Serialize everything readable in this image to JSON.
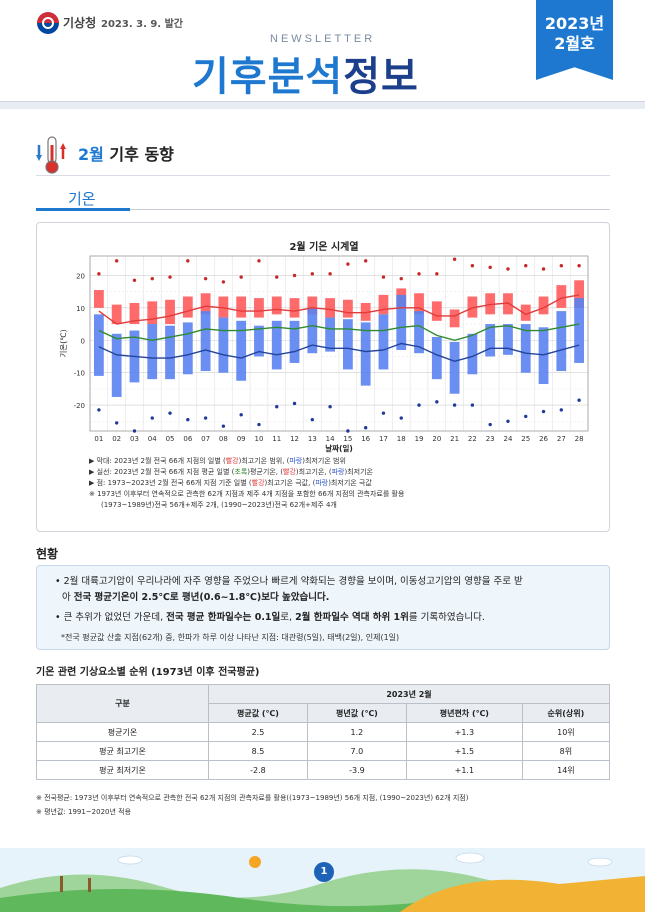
{
  "header": {
    "agency": "기상청",
    "pub_date": "2023. 3. 9. 발간",
    "newsletter": "NEWSLETTER",
    "title_part1": "기후분석",
    "title_part2": "정보",
    "issue_year": "2023년",
    "issue_month": "2월호",
    "colors": {
      "accent": "#1e78d0",
      "dark_blue": "#1c3f8c"
    }
  },
  "section": {
    "icon": "thermometer-icon",
    "title_month": "2월",
    "title_rest": " 기후 동향",
    "tab": "기온"
  },
  "chart_data": {
    "type": "bar",
    "title": "2월 기온 시계열",
    "xlabel": "날짜(일)",
    "ylabel": "기온(℃)",
    "ylim": [
      -28,
      26
    ],
    "yticks": [
      -20,
      -10,
      0,
      10,
      20
    ],
    "grid": true,
    "categories": [
      "01",
      "02",
      "03",
      "04",
      "05",
      "06",
      "07",
      "08",
      "09",
      "10",
      "11",
      "12",
      "13",
      "14",
      "15",
      "16",
      "17",
      "18",
      "19",
      "20",
      "21",
      "22",
      "23",
      "24",
      "25",
      "26",
      "27",
      "28"
    ],
    "series": [
      {
        "kind": "range",
        "color": "#ff5a5a",
        "low": [
          10,
          5,
          5,
          5,
          5,
          7,
          8,
          7,
          7,
          7,
          8,
          7,
          8,
          7,
          7,
          6,
          8,
          10,
          8,
          6,
          4,
          7,
          8,
          8,
          6,
          8,
          10,
          10
        ],
        "high": [
          15.5,
          11,
          11.5,
          12,
          12.5,
          13.5,
          14.5,
          13.5,
          13.5,
          13,
          13.5,
          13,
          13.5,
          13,
          12.5,
          11.5,
          14,
          16,
          14.5,
          12,
          9.5,
          13.5,
          14.5,
          14.5,
          11,
          13.5,
          17,
          18.5
        ]
      },
      {
        "kind": "range",
        "color": "#5a82ef",
        "low": [
          -11,
          -17.5,
          -13,
          -12,
          -12,
          -10.5,
          -9.5,
          -10,
          -12.5,
          -5,
          -9,
          -7,
          -4,
          -3.5,
          -9,
          -14,
          -9,
          -3,
          -4,
          -12,
          -16.5,
          -10.5,
          -5,
          -4.5,
          -10,
          -13.5,
          -9.5,
          -7
        ],
        "high": [
          8,
          2,
          3,
          5,
          4.5,
          5.5,
          9,
          7,
          6,
          4.5,
          6,
          6,
          10,
          7,
          6.5,
          5.5,
          8,
          14,
          9,
          1,
          -0.5,
          2,
          5,
          5,
          5,
          4,
          9,
          13
        ]
      },
      {
        "kind": "line",
        "color": "#e23b3b",
        "values": [
          9,
          5,
          6,
          6.5,
          7.5,
          9,
          10.5,
          10,
          9,
          9,
          9.5,
          9,
          10,
          9.5,
          8.5,
          8.5,
          9.5,
          10,
          10,
          7.5,
          7.5,
          10,
          11,
          11.5,
          8,
          10,
          13,
          14
        ]
      },
      {
        "kind": "line",
        "color": "#2e8b2e",
        "values": [
          3,
          0.5,
          1,
          0,
          1,
          2,
          3.5,
          3,
          3,
          3.5,
          4,
          3.5,
          4.5,
          3.5,
          3.5,
          3,
          3,
          4,
          4.5,
          1.5,
          0,
          1.5,
          4,
          4.5,
          3,
          3,
          4,
          5
        ]
      },
      {
        "kind": "line",
        "color": "#22449b",
        "values": [
          -2,
          -4.5,
          -5,
          -5.5,
          -5.5,
          -4.5,
          -3,
          -4.5,
          -5.5,
          -3.5,
          -4.5,
          -3.5,
          -1.5,
          -2.5,
          -2.5,
          -3.5,
          -3,
          -1,
          -2,
          -4.5,
          -6.5,
          -5,
          -2.5,
          -2.5,
          -4,
          -4.5,
          -3,
          -1.5
        ]
      },
      {
        "kind": "points",
        "color": "#c82828",
        "values": [
          20.5,
          24.5,
          18.5,
          19,
          19.5,
          24.5,
          19,
          18,
          19.5,
          24.5,
          19.5,
          20,
          20.5,
          20.5,
          23.5,
          24.5,
          19.5,
          19,
          20.5,
          20.5,
          25,
          23,
          22.5,
          22,
          23,
          22,
          23,
          23
        ]
      },
      {
        "kind": "points",
        "color": "#1f3a9a",
        "values": [
          -21.5,
          -25.5,
          -28,
          -24,
          -22.5,
          -24.5,
          -24,
          -26.5,
          -23,
          -26,
          -20.5,
          -19.5,
          -24.5,
          -20.5,
          -28,
          -27,
          -22.5,
          -24,
          -20,
          -19,
          -20,
          -20,
          -26,
          -25,
          -23.5,
          -22,
          -21.5,
          -18.5
        ]
      }
    ]
  },
  "legend": {
    "line1_pre": "▶ 막대: 2023년 2월 전국 66개 지점의 일별 (",
    "line1_red": "빨강",
    "line1_mid": ")최고기온 범위, (",
    "line1_blue": "파랑",
    "line1_post": ")최저기온 범위",
    "line2_pre": "▶ 실선: 2023년 2월 전국 66개 지점 평균 일별 (",
    "line2_green": "초록",
    "line2_mid1": ")평균기온, (",
    "line2_red": "빨강",
    "line2_mid2": ")최고기온, (",
    "line2_blue": "파랑",
    "line2_post": ")최저기온",
    "line3_pre": "▶ 점: 1973~2023년 2월 전국 66개 지점 기준 일별 (",
    "line3_red": "빨강",
    "line3_mid": ")최고기온 극값, (",
    "line3_blue": "파랑",
    "line3_post": ")최저기온 극값",
    "line4": "※ 1973년 이후부터 연속적으로 관측한 62개 지점과 제주 4개 지점을 포함한 66개 지점의 관측자료를 활용",
    "line5": "(1973~1989년)전국 56개+제주 2개, (1990~2023년)전국 62개+제주 4개"
  },
  "status": {
    "title": "현황",
    "item1_a": "• 2월 대륙고기압이 우리나라에 자주 영향을 주었으나 빠르게 약화되는 경향을 보이며, 이동성고기압의 영향을 주로 받",
    "item1_b_pre": "아 ",
    "item1_b_bold": "전국 평균기온이 2.5℃로 평년(0.6~1.8℃)보다 높았습니다.",
    "item2_pre": "• 큰 추위가 없었던 가운데, ",
    "item2_bold1": "전국 평균 한파일수는 0.1일",
    "item2_mid": "로, ",
    "item2_bold2": "2월 한파일수 역대 하위 1위",
    "item2_post": "를 기록하였습니다.",
    "note": "*전국 평균값 산출 지점(62개) 중, 한파가 하루 이상 나타난 지점: 대관령(5일), 태백(2일), 인제(1일)"
  },
  "rank": {
    "title": "기온 관련 기상요소별 순위 (1973년 이후 전국평균)",
    "col_group": "구분",
    "col_span": "2023년 2월",
    "columns": [
      "평균값 (℃)",
      "평년값 (℃)",
      "평년편차 (℃)",
      "순위(상위)"
    ],
    "rows": [
      {
        "label": "평균기온",
        "cells": [
          "2.5",
          "1.2",
          "+1.3",
          "10위"
        ]
      },
      {
        "label": "평균 최고기온",
        "cells": [
          "8.5",
          "7.0",
          "+1.5",
          "8위"
        ]
      },
      {
        "label": "평균 최저기온",
        "cells": [
          "-2.8",
          "-3.9",
          "+1.1",
          "14위"
        ]
      }
    ],
    "foot1": "※ 전국평균: 1973년 이후부터 연속적으로 관측한 전국 62개 지점의 관측자료를 활용((1973~1989년) 56개 지점, (1990~2023년) 62개 지점)",
    "foot2": "※ 평년값: 1991~2020년 적용"
  },
  "footer": {
    "page": "1"
  }
}
